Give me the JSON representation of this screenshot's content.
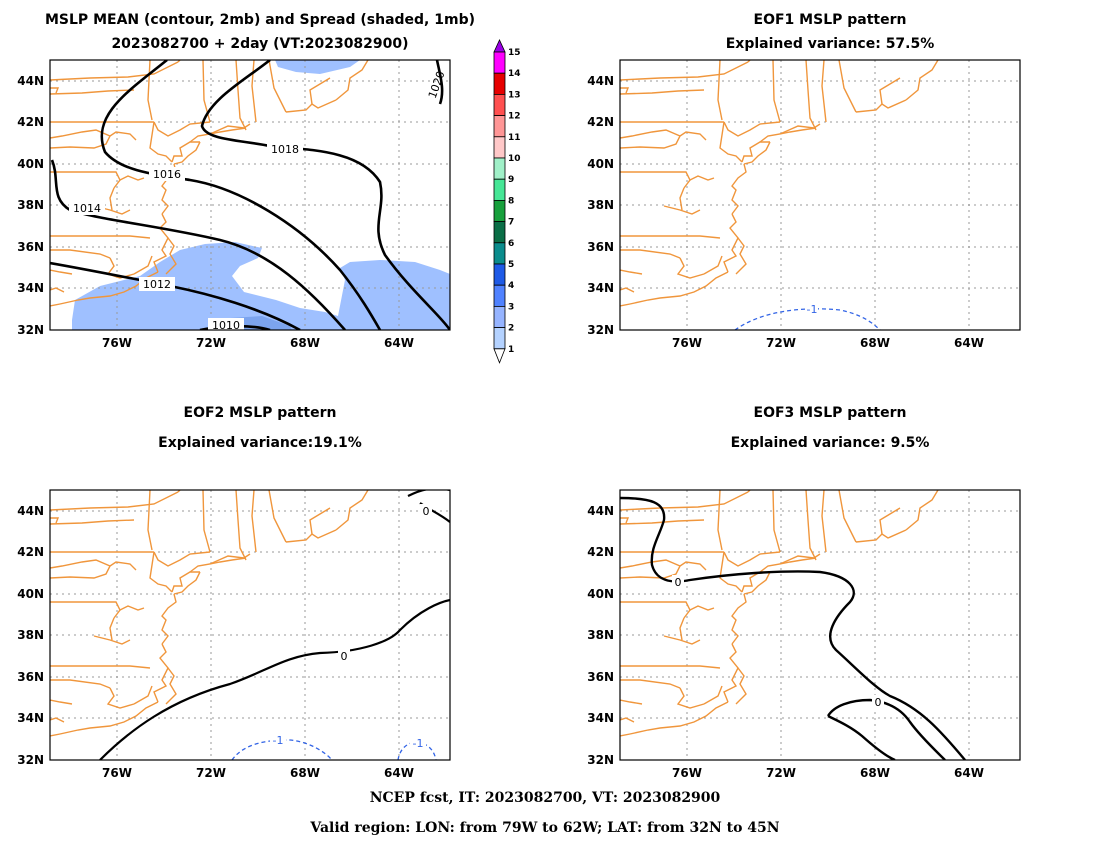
{
  "panels": [
    {
      "title1": "MSLP MEAN (contour, 2mb) and Spread (shaded, 1mb)",
      "title2": "2023082700 + 2day (VT:2023082900)",
      "contour_labels": [
        "1018",
        "1016",
        "1014",
        "1012",
        "1010",
        "1020"
      ]
    },
    {
      "title1": "EOF1 MSLP pattern",
      "title2": "Explained variance: 57.5%",
      "contour_labels": [
        "-1"
      ]
    },
    {
      "title1": "EOF2 MSLP pattern",
      "title2": "Explained variance:19.1%",
      "contour_labels": [
        "0",
        "0",
        "-1",
        "-1"
      ]
    },
    {
      "title1": "EOF3 MSLP pattern",
      "title2": "Explained variance: 9.5%",
      "contour_labels": [
        "0",
        "0"
      ]
    }
  ],
  "axes": {
    "lat_ticks": [
      "44N",
      "42N",
      "40N",
      "38N",
      "36N",
      "34N",
      "32N"
    ],
    "lon_ticks": [
      "76W",
      "72W",
      "68W",
      "64W"
    ]
  },
  "colorbar": {
    "labels": [
      "1",
      "2",
      "3",
      "4",
      "5",
      "6",
      "7",
      "8",
      "9",
      "10",
      "11",
      "12",
      "13",
      "14",
      "15"
    ],
    "colors": [
      "#ffffff",
      "#b4d2ff",
      "#96b4ff",
      "#5082ff",
      "#1e5ae6",
      "#0a8c8c",
      "#0a6e46",
      "#17a03c",
      "#46e696",
      "#a0f0c8",
      "#ffc8c8",
      "#ff9696",
      "#ff5050",
      "#e60000",
      "#ff00ff",
      "#9b00e6"
    ]
  },
  "footer": {
    "line1": "NCEP fcst, IT: 2023082700, VT: 2023082900",
    "line2": "Valid region: LON: from 79W to 62W; LAT: from 32N to 45N"
  },
  "colors": {
    "coast": "#f0963c",
    "contour": "#000000",
    "negative_contour": "#3264e6",
    "spread_1mb": "#9fc0ff",
    "spread_2mb": "#7ca4ee"
  }
}
